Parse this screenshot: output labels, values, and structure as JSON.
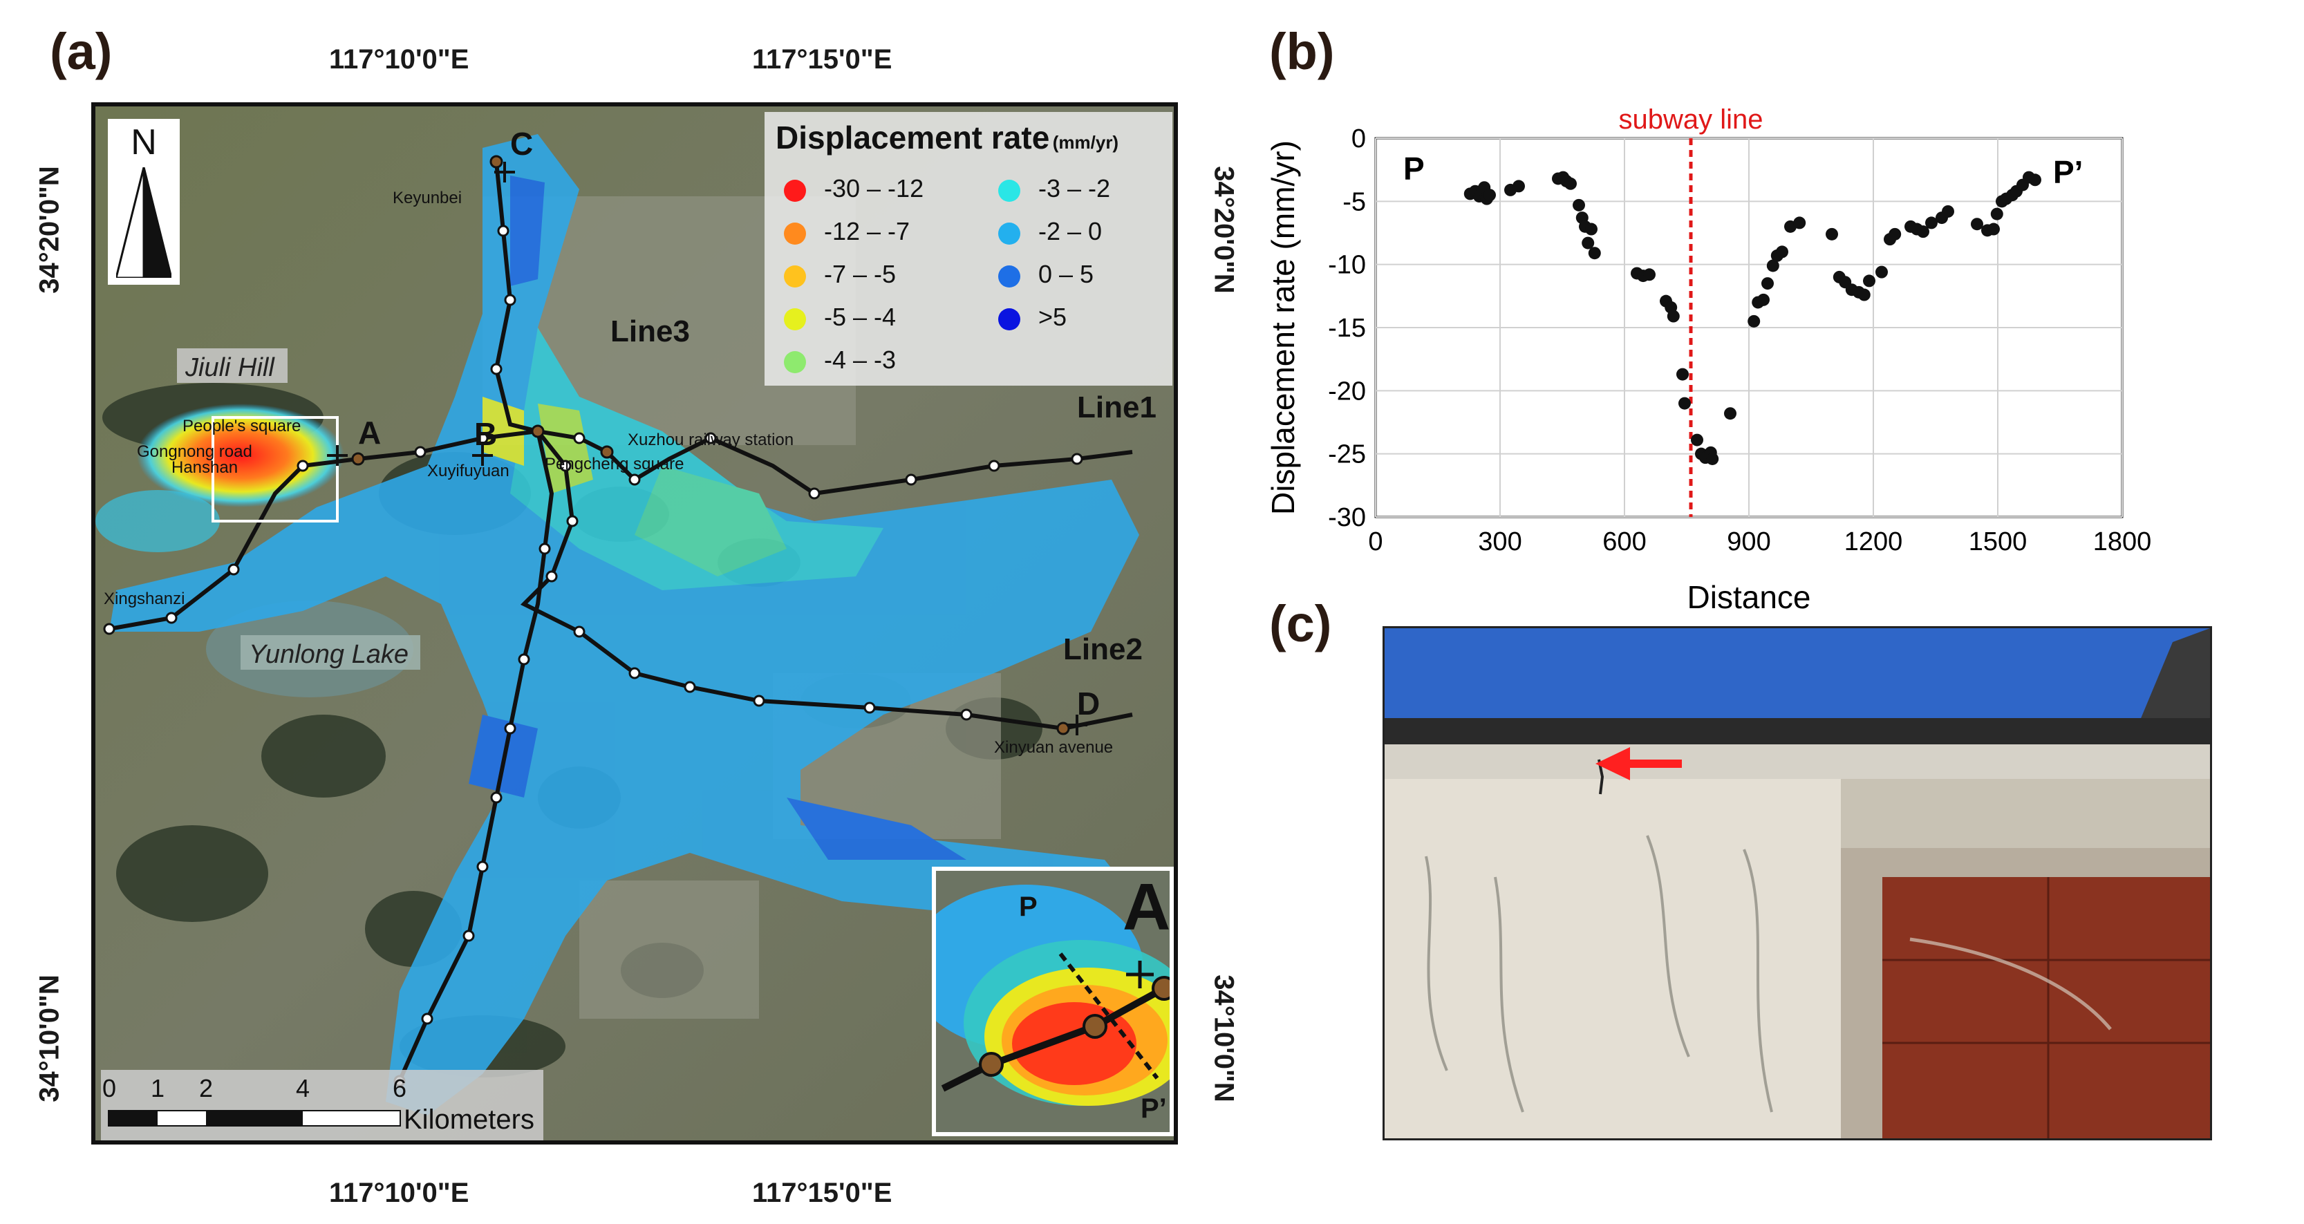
{
  "panels": {
    "a": "(a)",
    "b": "(b)",
    "c": "(c)"
  },
  "map": {
    "coords": {
      "top_left": "117°10'0\"E",
      "top_right": "117°15'0\"E",
      "bottom_left": "117°10'0\"E",
      "bottom_right": "117°15'0\"E",
      "left_top": "34°20'0\"N",
      "left_bottom": "34°10'0\"N",
      "right_top": "34°20'0\"N",
      "right_bottom": "34°10'0\"N"
    },
    "north_label": "N",
    "legend": {
      "title": "Displacement rate",
      "unit": "(mm/yr)",
      "items": [
        {
          "label": "-30 – -12",
          "color": "#ff1a1a"
        },
        {
          "label": "-12 – -7",
          "color": "#ff8a1e"
        },
        {
          "label": "-7 – -5",
          "color": "#ffc21e"
        },
        {
          "label": "-5 – -4",
          "color": "#e6f01e"
        },
        {
          "label": "-4 – -3",
          "color": "#8eea6e"
        },
        {
          "label": "-3 – -2",
          "color": "#2ae6e6"
        },
        {
          "label": "-2 – 0",
          "color": "#23b0ee"
        },
        {
          "label": "0 – 5",
          "color": "#1e6fe6"
        },
        {
          "label": ">5",
          "color": "#0a14e0"
        }
      ]
    },
    "areas": {
      "jiuli": "Jiuli Hill",
      "yunlong": "Yunlong Lake"
    },
    "lines": {
      "line1": "Line1",
      "line2": "Line2",
      "line3": "Line3"
    },
    "points": {
      "a": "A",
      "b": "B",
      "c": "C",
      "d": "D"
    },
    "stations": {
      "keyunbei": "Keyunbei",
      "peoples_square": "People's square",
      "gongnong": "Gongnong road",
      "hanshan": "Hanshan",
      "xingshanzi": "Xingshanzi",
      "xuyifuyuan": "Xuyifuyuan",
      "pengcheng": "Pengcheng square",
      "railway": "Xuzhou railway station",
      "xinyuan": "Xinyuan avenue"
    },
    "scale": {
      "ticks": [
        "0",
        "1",
        "2",
        "4",
        "6"
      ],
      "unit": "Kilometers"
    },
    "inset": {
      "label": "A",
      "p": "P",
      "p_prime": "P’"
    }
  },
  "chart_data": {
    "type": "scatter",
    "xlabel": "Distance",
    "ylabel": "Displacement rate (mm/yr)",
    "xlim": [
      0,
      1800
    ],
    "ylim": [
      -30,
      0
    ],
    "xticks": [
      0,
      300,
      600,
      900,
      1200,
      1500,
      1800
    ],
    "yticks": [
      0,
      -5,
      -10,
      -15,
      -20,
      -25,
      -30
    ],
    "grid": true,
    "annotations": {
      "subway_line": "subway line",
      "subway_x": 760,
      "left": "P",
      "right": "P’"
    },
    "points": [
      [
        228,
        -4.4
      ],
      [
        240,
        -4.2
      ],
      [
        250,
        -4.6
      ],
      [
        258,
        -4.1
      ],
      [
        262,
        -3.9
      ],
      [
        268,
        -4.8
      ],
      [
        275,
        -4.5
      ],
      [
        325,
        -4.1
      ],
      [
        345,
        -3.8
      ],
      [
        440,
        -3.2
      ],
      [
        452,
        -3.1
      ],
      [
        460,
        -3.4
      ],
      [
        470,
        -3.6
      ],
      [
        490,
        -5.3
      ],
      [
        498,
        -6.3
      ],
      [
        505,
        -7.0
      ],
      [
        512,
        -8.3
      ],
      [
        520,
        -7.2
      ],
      [
        528,
        -9.1
      ],
      [
        630,
        -10.7
      ],
      [
        645,
        -10.9
      ],
      [
        660,
        -10.8
      ],
      [
        700,
        -12.9
      ],
      [
        712,
        -13.4
      ],
      [
        718,
        -14.1
      ],
      [
        740,
        -18.7
      ],
      [
        745,
        -21.0
      ],
      [
        775,
        -23.9
      ],
      [
        785,
        -25.0
      ],
      [
        795,
        -25.3
      ],
      [
        808,
        -24.9
      ],
      [
        812,
        -25.4
      ],
      [
        855,
        -21.8
      ],
      [
        912,
        -14.5
      ],
      [
        922,
        -13.0
      ],
      [
        935,
        -12.8
      ],
      [
        945,
        -11.5
      ],
      [
        958,
        -10.1
      ],
      [
        968,
        -9.3
      ],
      [
        980,
        -9.0
      ],
      [
        1000,
        -7.0
      ],
      [
        1022,
        -6.7
      ],
      [
        1100,
        -7.6
      ],
      [
        1118,
        -11.0
      ],
      [
        1132,
        -11.4
      ],
      [
        1148,
        -12.0
      ],
      [
        1165,
        -12.2
      ],
      [
        1178,
        -12.4
      ],
      [
        1190,
        -11.3
      ],
      [
        1220,
        -10.6
      ],
      [
        1240,
        -8.0
      ],
      [
        1252,
        -7.6
      ],
      [
        1290,
        -7.0
      ],
      [
        1305,
        -7.2
      ],
      [
        1320,
        -7.4
      ],
      [
        1340,
        -6.7
      ],
      [
        1365,
        -6.3
      ],
      [
        1380,
        -5.8
      ],
      [
        1450,
        -6.8
      ],
      [
        1475,
        -7.3
      ],
      [
        1490,
        -7.2
      ],
      [
        1498,
        -6.0
      ],
      [
        1510,
        -5.0
      ],
      [
        1520,
        -4.8
      ],
      [
        1535,
        -4.5
      ],
      [
        1545,
        -4.2
      ],
      [
        1560,
        -3.7
      ],
      [
        1575,
        -3.1
      ],
      [
        1590,
        -3.3
      ]
    ]
  }
}
